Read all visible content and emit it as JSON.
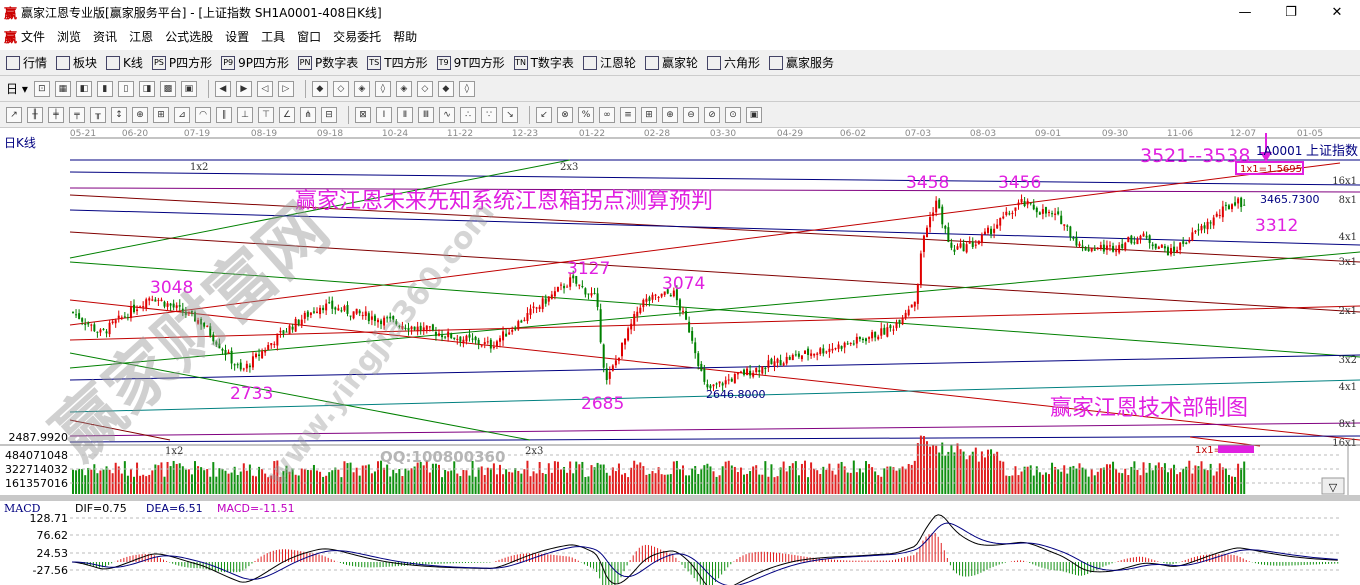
{
  "window": {
    "title": "赢家江恩专业版[赢家服务平台] - [上证指数  SH1A0001-408日K线]",
    "logo": "赢",
    "minimize": "—",
    "restore": "❐",
    "close": "✕"
  },
  "menu": {
    "logo": "赢",
    "items": [
      "文件",
      "浏览",
      "资讯",
      "江恩",
      "公式选股",
      "设置",
      "工具",
      "窗口",
      "交易委托",
      "帮助"
    ],
    "mdi": [
      "_",
      "❐",
      "✕"
    ]
  },
  "toolbar1": [
    {
      "icon": "grid-icon",
      "label": "行情"
    },
    {
      "icon": "blocks-icon",
      "label": "板块"
    },
    {
      "icon": "candle-icon",
      "label": "K线"
    },
    {
      "icon": "PS",
      "label": "P四方形"
    },
    {
      "icon": "P9",
      "label": "9P四方形"
    },
    {
      "icon": "PN",
      "label": "P数字表"
    },
    {
      "icon": "TS",
      "label": "T四方形"
    },
    {
      "icon": "T9",
      "label": "9T四方形"
    },
    {
      "icon": "TN",
      "label": "T数字表"
    },
    {
      "icon": "gann-wheel-icon",
      "label": "江恩轮"
    },
    {
      "icon": "winner-wheel-icon",
      "label": "赢家轮"
    },
    {
      "icon": "hexagon-icon",
      "label": "六角形"
    },
    {
      "icon": "dollar-icon",
      "label": "赢家服务"
    }
  ],
  "toolbar2": {
    "period": "日"
  },
  "chart": {
    "period_label": "日K线",
    "symbol": "1A0001",
    "index_name": "上证指数",
    "dates": [
      "05-21",
      "06-20",
      "07-19",
      "08-19",
      "09-18",
      "10-24",
      "11-22",
      "12-23",
      "01-22",
      "02-28",
      "03-30",
      "04-29",
      "06-02",
      "07-03",
      "08-03",
      "09-01",
      "09-30",
      "11-06",
      "12-07",
      "01-05"
    ],
    "price_high_label": "3465.7300",
    "price_low_label": "2646.8000",
    "price_axis_label": "2487.9920",
    "gann_right_labels": [
      "16x1",
      "8x1",
      "4x1",
      "3x1",
      "2x1",
      "3x2",
      "4x1",
      "8x1",
      "16x1"
    ],
    "gann_left_labels": [
      "1x2",
      "2x3",
      "1x2",
      "2x3"
    ],
    "gann_box_label": "1x1=1.5695",
    "gann_bottom_label": "1x1=",
    "annotations": {
      "headline": "赢家江恩未来先知系统江恩箱拐点测算预判",
      "credit": "赢家江恩技术部制图",
      "target": "3521--3538",
      "pivots": [
        "3048",
        "2733",
        "3127",
        "2685",
        "3074",
        "3458",
        "3456",
        "3312"
      ]
    },
    "watermarks": [
      "赢家财富网",
      "www.yingjia360.com",
      "QQ:100800360"
    ]
  },
  "volume": {
    "labels": [
      "484071048",
      "322714032",
      "161357016"
    ],
    "toggle": "▽"
  },
  "macd": {
    "title": "MACD",
    "dif": "DIF=0.75",
    "dea": "DEA=6.51",
    "macd": "MACD=-11.51",
    "axis": [
      "128.71",
      "76.62",
      "24.53",
      "-27.56"
    ]
  },
  "colors": {
    "up": "#e00000",
    "down": "#008000",
    "annotation": "#e020e0",
    "axis_text": "#000080",
    "bg": "#ffffff"
  }
}
